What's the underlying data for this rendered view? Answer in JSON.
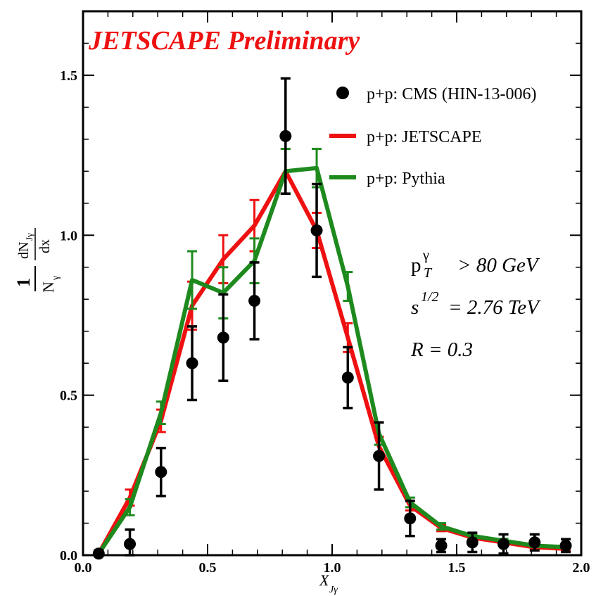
{
  "chart_data": {
    "type": "line",
    "title": "",
    "banner": "JETSCAPE Preliminary",
    "banner_color": "#ee1111",
    "xlabel": {
      "main": "X",
      "sub": "Jγ"
    },
    "ylabel": {
      "num": "1",
      "den": "N",
      "den_sub": "γ",
      "dnum": "dN",
      "dnum_sub": "Jγ",
      "dden": "dx"
    },
    "xlim": [
      0,
      2
    ],
    "ylim": [
      0,
      1.7
    ],
    "xticks": [
      0,
      0.5,
      1,
      1.5,
      2
    ],
    "xtick_labels": [
      "0.0",
      "0.5",
      "1.0",
      "1.5",
      "2.0"
    ],
    "yticks": [
      0,
      0.5,
      1,
      1.5
    ],
    "ytick_labels": [
      "0.0",
      "0.5",
      "1.0",
      "1.5"
    ],
    "series": [
      {
        "name": "p+p: CMS (HIN-13-006)",
        "kind": "points",
        "color": "#000000",
        "x": [
          0.063,
          0.188,
          0.313,
          0.438,
          0.563,
          0.688,
          0.813,
          0.938,
          1.063,
          1.188,
          1.313,
          1.438,
          1.563,
          1.688,
          1.813,
          1.938
        ],
        "y": [
          0.005,
          0.035,
          0.26,
          0.6,
          0.68,
          0.795,
          1.31,
          1.015,
          0.555,
          0.31,
          0.115,
          0.03,
          0.04,
          0.035,
          0.04,
          0.03
        ],
        "err": [
          0.01,
          0.045,
          0.075,
          0.115,
          0.135,
          0.12,
          0.18,
          0.145,
          0.095,
          0.105,
          0.055,
          0.02,
          0.03,
          0.03,
          0.025,
          0.02
        ]
      },
      {
        "name": "p+p: JETSCAPE",
        "kind": "line",
        "color": "#ee1111",
        "x": [
          0.063,
          0.188,
          0.313,
          0.438,
          0.563,
          0.688,
          0.813,
          0.938,
          1.063,
          1.188,
          1.313,
          1.438,
          1.563,
          1.688,
          1.813,
          1.938
        ],
        "y": [
          0.005,
          0.18,
          0.42,
          0.78,
          0.925,
          1.03,
          1.2,
          1.015,
          0.68,
          0.34,
          0.155,
          0.085,
          0.055,
          0.04,
          0.025,
          0.02
        ],
        "err": [
          0.005,
          0.025,
          0.035,
          0.075,
          0.075,
          0.08,
          0.07,
          0.055,
          0.045,
          0.03,
          0.015,
          0.01,
          0.008,
          0.006,
          0.005,
          0.004
        ]
      },
      {
        "name": "p+p: Pythia",
        "kind": "line",
        "color": "#1e8a1e",
        "x": [
          0.063,
          0.188,
          0.313,
          0.438,
          0.563,
          0.688,
          0.813,
          0.938,
          1.063,
          1.188,
          1.313,
          1.438,
          1.563,
          1.688,
          1.813,
          1.938
        ],
        "y": [
          0.005,
          0.15,
          0.445,
          0.86,
          0.82,
          0.92,
          1.2,
          1.21,
          0.84,
          0.38,
          0.165,
          0.09,
          0.06,
          0.045,
          0.03,
          0.025
        ],
        "err": [
          0.005,
          0.025,
          0.035,
          0.09,
          0.08,
          0.07,
          0.07,
          0.06,
          0.045,
          0.035,
          0.015,
          0.01,
          0.008,
          0.006,
          0.005,
          0.004
        ]
      }
    ],
    "annotations": [
      {
        "id": "pt",
        "main": "p",
        "sup": "γ",
        "sub": "T",
        "rest": "> 80 GeV"
      },
      {
        "id": "s",
        "main": "s",
        "sup": "1/2",
        "rest": "= 2.76 TeV"
      },
      {
        "id": "r",
        "text": "R = 0.3"
      }
    ]
  }
}
